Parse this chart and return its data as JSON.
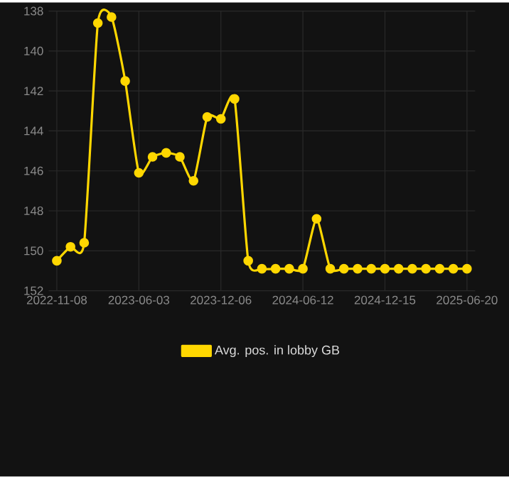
{
  "chart_data": {
    "type": "line",
    "categories": [
      "2022-11-08",
      null,
      null,
      null,
      null,
      null,
      "2023-06-03",
      null,
      null,
      null,
      null,
      null,
      "2023-12-06",
      null,
      null,
      null,
      null,
      null,
      "2024-06-12",
      null,
      null,
      null,
      null,
      null,
      "2024-12-15",
      null,
      null,
      null,
      null,
      null,
      "2025-06-20"
    ],
    "series": [
      {
        "name": "Avg. pos. in lobby GB",
        "color": "#ffd700",
        "values": [
          150.5,
          149.8,
          149.6,
          138.6,
          138.3,
          141.5,
          146.1,
          145.3,
          145.1,
          145.3,
          146.5,
          143.3,
          143.4,
          142.4,
          150.5,
          150.9,
          150.9,
          150.9,
          150.9,
          148.4,
          150.9,
          150.9,
          150.9,
          150.9,
          150.9,
          150.9,
          150.9,
          150.9,
          150.9,
          150.9,
          150.9
        ]
      }
    ],
    "ylim": [
      152,
      138
    ],
    "yticks": [
      138,
      140,
      142,
      144,
      146,
      148,
      150,
      152
    ],
    "grid": true,
    "legend": "bottom",
    "marker": "circle",
    "line_style": "solid"
  }
}
